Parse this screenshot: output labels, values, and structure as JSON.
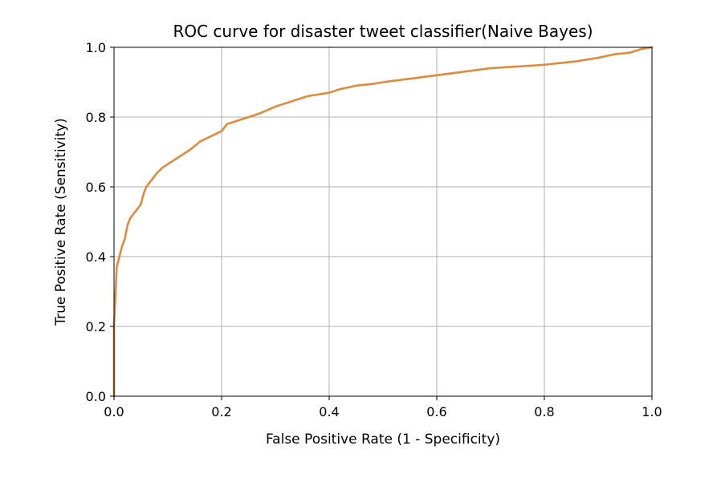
{
  "chart_data": {
    "type": "line",
    "title": "ROC curve for disaster tweet classifier(Naive Bayes)",
    "xlabel": "False Positive Rate (1 - Specificity)",
    "ylabel": "True Positive Rate (Sensitivity)",
    "xlim": [
      0.0,
      1.0
    ],
    "ylim": [
      0.0,
      1.0
    ],
    "xticks": [
      "0.0",
      "0.2",
      "0.4",
      "0.6",
      "0.8",
      "1.0"
    ],
    "yticks": [
      "0.0",
      "0.2",
      "0.4",
      "0.6",
      "0.8",
      "1.0"
    ],
    "grid": true,
    "line_color": "#e08a3c",
    "series": [
      {
        "x": [
          0.0,
          0.0,
          0.003,
          0.005,
          0.01,
          0.015,
          0.02,
          0.025,
          0.03,
          0.04,
          0.05,
          0.055,
          0.06,
          0.07,
          0.08,
          0.09,
          0.1,
          0.12,
          0.14,
          0.16,
          0.18,
          0.2,
          0.21,
          0.23,
          0.25,
          0.27,
          0.3,
          0.33,
          0.36,
          0.38,
          0.4,
          0.42,
          0.45,
          0.48,
          0.5,
          0.55,
          0.6,
          0.65,
          0.7,
          0.75,
          0.8,
          0.83,
          0.86,
          0.9,
          0.93,
          0.96,
          0.98,
          1.0
        ],
        "y": [
          0.0,
          0.2,
          0.3,
          0.37,
          0.4,
          0.43,
          0.45,
          0.49,
          0.51,
          0.53,
          0.55,
          0.58,
          0.6,
          0.62,
          0.64,
          0.655,
          0.665,
          0.685,
          0.705,
          0.73,
          0.745,
          0.76,
          0.78,
          0.79,
          0.8,
          0.81,
          0.83,
          0.845,
          0.86,
          0.865,
          0.87,
          0.88,
          0.89,
          0.895,
          0.9,
          0.91,
          0.92,
          0.93,
          0.94,
          0.945,
          0.95,
          0.955,
          0.96,
          0.97,
          0.98,
          0.985,
          0.995,
          1.0
        ]
      }
    ]
  }
}
